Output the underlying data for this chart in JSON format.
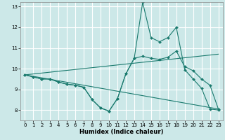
{
  "xlabel": "Humidex (Indice chaleur)",
  "bg_color": "#cce8e8",
  "line_color": "#1a7a6e",
  "grid_color": "#ffffff",
  "xlim": [
    -0.5,
    23.5
  ],
  "ylim": [
    7.5,
    13.2
  ],
  "yticks": [
    8,
    9,
    10,
    11,
    12,
    13
  ],
  "xtick_labels": [
    "0",
    "1",
    "2",
    "3",
    "4",
    "5",
    "6",
    "7",
    "8",
    "9",
    "10",
    "11",
    "12",
    "13",
    "14",
    "15",
    "16",
    "17",
    "18",
    "19",
    "20",
    "21",
    "22",
    "23"
  ],
  "xticks": [
    0,
    1,
    2,
    3,
    4,
    5,
    6,
    7,
    8,
    9,
    10,
    11,
    12,
    13,
    14,
    15,
    16,
    17,
    18,
    19,
    20,
    21,
    22,
    23
  ],
  "lines": [
    {
      "x": [
        0,
        1,
        2,
        3,
        4,
        5,
        6,
        7,
        8,
        9,
        10,
        11,
        12,
        13,
        14,
        15,
        16,
        17,
        18,
        19,
        20,
        21,
        22,
        23
      ],
      "y": [
        9.7,
        9.6,
        9.5,
        9.5,
        9.35,
        9.25,
        9.2,
        9.1,
        8.5,
        8.1,
        7.95,
        8.55,
        9.75,
        10.5,
        13.2,
        11.5,
        11.3,
        11.5,
        12.0,
        9.95,
        9.5,
        9.05,
        8.05,
        8.0
      ],
      "marker": true
    },
    {
      "x": [
        0,
        1,
        2,
        3,
        4,
        5,
        6,
        7,
        8,
        9,
        10,
        11,
        12,
        13,
        14,
        15,
        16,
        17,
        18,
        19,
        20,
        21,
        22,
        23
      ],
      "y": [
        9.7,
        9.6,
        9.5,
        9.5,
        9.35,
        9.25,
        9.2,
        9.1,
        8.5,
        8.1,
        7.95,
        8.55,
        9.75,
        10.5,
        10.6,
        10.5,
        10.45,
        10.55,
        10.85,
        10.1,
        9.9,
        9.5,
        9.2,
        8.05
      ],
      "marker": true
    },
    {
      "x": [
        0,
        23
      ],
      "y": [
        9.7,
        10.7
      ],
      "marker": false
    },
    {
      "x": [
        0,
        23
      ],
      "y": [
        9.7,
        8.05
      ],
      "marker": false
    }
  ]
}
